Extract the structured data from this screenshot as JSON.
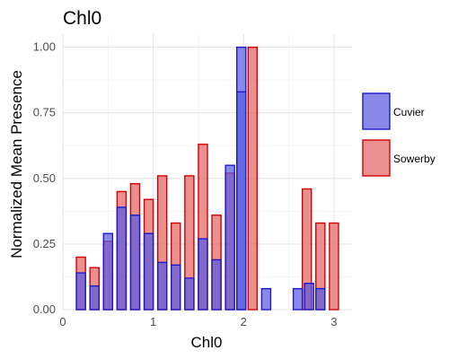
{
  "chart_data": {
    "type": "bar",
    "title": "Chl0",
    "xlabel": "Chl0",
    "ylabel": "Normalized Mean Presence",
    "xlim": [
      0,
      3.2
    ],
    "ylim": [
      0,
      1.05
    ],
    "x_ticks": [
      0,
      1,
      2,
      3
    ],
    "x_tick_labels": [
      "0",
      "1",
      "2",
      "3"
    ],
    "y_ticks": [
      0,
      0.25,
      0.5,
      0.75,
      1.0
    ],
    "y_tick_labels": [
      "0.00",
      "0.25",
      "0.50",
      "0.75",
      "1.00"
    ],
    "bin_width": 0.1,
    "grid": true,
    "legend_position": "right",
    "series": [
      {
        "name": "Sowerby",
        "color": "#e06666",
        "stroke": "#d40000",
        "x": [
          0.2,
          0.35,
          0.5,
          0.65,
          0.8,
          0.95,
          1.1,
          1.25,
          1.4,
          1.55,
          1.7,
          1.85,
          2.1,
          2.7,
          2.85,
          3.0
        ],
        "values": [
          0.2,
          0.16,
          0.26,
          0.45,
          0.48,
          0.42,
          0.51,
          0.33,
          0.51,
          0.63,
          0.36,
          0.52,
          1.0,
          0.46,
          0.33,
          0.33
        ]
      },
      {
        "name": "Cuvier",
        "color": "#5b5bde",
        "stroke": "#1a1acc",
        "x": [
          0.2,
          0.35,
          0.5,
          0.65,
          0.8,
          0.95,
          1.1,
          1.25,
          1.4,
          1.55,
          1.7,
          1.85,
          1.975,
          2.25,
          2.6,
          2.725,
          2.85
        ],
        "values": [
          0.14,
          0.09,
          0.29,
          0.39,
          0.36,
          0.29,
          0.18,
          0.17,
          0.12,
          0.27,
          0.19,
          0.55,
          1.0,
          0.08,
          0.08,
          0.1,
          0.08
        ]
      }
    ],
    "overlay_cuvier": {
      "x": 1.975,
      "value": 0.83
    }
  }
}
